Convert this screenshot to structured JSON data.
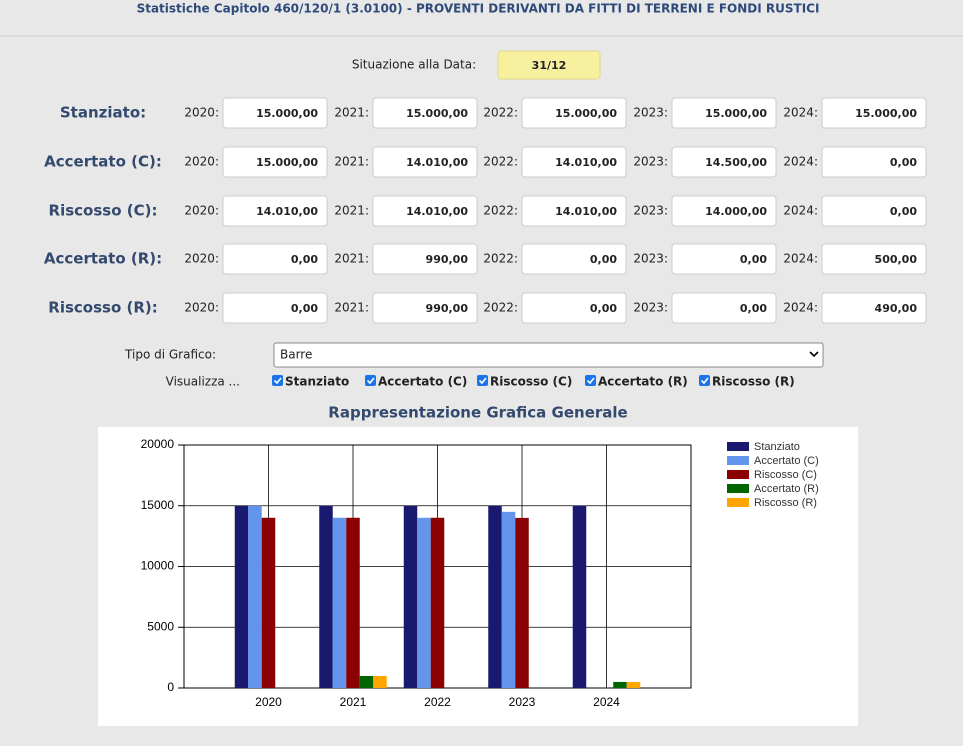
{
  "header": {
    "title": "Statistiche Capitolo 460/120/1 (3.0100) - PROVENTI DERIVANTI DA FITTI DI TERRENI E FONDI RUSTICI"
  },
  "date": {
    "label": "Situazione alla Data:",
    "value": "31/12"
  },
  "years": [
    "2020:",
    "2021:",
    "2022:",
    "2023:",
    "2024:"
  ],
  "rows": [
    {
      "label": "Stanziato:",
      "values": [
        "15.000,00",
        "15.000,00",
        "15.000,00",
        "15.000,00",
        "15.000,00"
      ]
    },
    {
      "label": "Accertato (C):",
      "values": [
        "15.000,00",
        "14.010,00",
        "14.010,00",
        "14.500,00",
        "0,00"
      ]
    },
    {
      "label": "Riscosso (C):",
      "values": [
        "14.010,00",
        "14.010,00",
        "14.010,00",
        "14.000,00",
        "0,00"
      ]
    },
    {
      "label": "Accertato (R):",
      "values": [
        "0,00",
        "990,00",
        "0,00",
        "0,00",
        "500,00"
      ]
    },
    {
      "label": "Riscosso (R):",
      "values": [
        "0,00",
        "990,00",
        "0,00",
        "0,00",
        "490,00"
      ]
    }
  ],
  "controls": {
    "chart_type_label": "Tipo di Grafico:",
    "chart_type_value": "Barre",
    "show_label": "Visualizza ..."
  },
  "chart": {
    "type": "bar",
    "title": "Rappresentazione Grafica Generale",
    "categories": [
      "2020",
      "2021",
      "2022",
      "2023",
      "2024"
    ],
    "series": [
      {
        "name": "Stanziato",
        "color": "#191970",
        "values": [
          15000,
          15000,
          15000,
          15000,
          15000
        ]
      },
      {
        "name": "Accertato (C)",
        "color": "#6495ed",
        "values": [
          15000,
          14010,
          14010,
          14500,
          0
        ]
      },
      {
        "name": "Riscosso (C)",
        "color": "#8b0000",
        "values": [
          14010,
          14010,
          14010,
          14000,
          0
        ]
      },
      {
        "name": "Accertato (R)",
        "color": "#006400",
        "values": [
          0,
          990,
          0,
          0,
          500
        ]
      },
      {
        "name": "Riscosso (R)",
        "color": "#ffa500",
        "values": [
          0,
          990,
          0,
          0,
          490
        ]
      }
    ],
    "ylim": [
      0,
      20000
    ],
    "yticks": [
      0,
      5000,
      10000,
      15000,
      20000
    ],
    "grid": true
  }
}
